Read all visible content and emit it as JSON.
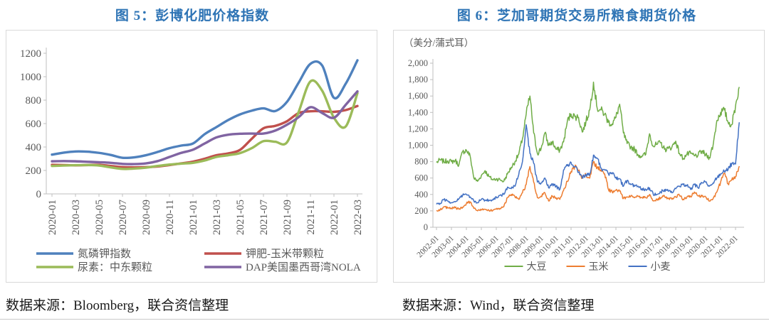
{
  "left": {
    "title": "图 5：彭博化肥价格指数",
    "source": "数据来源：Bloomberg，联合资信整理"
  },
  "right": {
    "title": "图 6：芝加哥期货交易所粮食期货价格",
    "source": "数据来源：Wind，联合资信整理"
  },
  "colors": {
    "title": "#2E74B5",
    "axis_text": "#595959",
    "axis_line": "#BFBFBF",
    "box_border": "#D9D9D9"
  },
  "chart_data": [
    {
      "type": "line",
      "title": "图 5：彭博化肥价格指数",
      "xlabel": "",
      "ylabel": "",
      "ylim": [
        0,
        1200
      ],
      "y_ticks": [
        0,
        200,
        400,
        600,
        800,
        1000,
        1200
      ],
      "y_tick_labels": [
        "0",
        "200",
        "400",
        "600",
        "800",
        "1000",
        "1200"
      ],
      "grid": false,
      "smooth": true,
      "legend_position": "bottom",
      "categories": [
        "2020-01",
        "2020-02",
        "2020-03",
        "2020-04",
        "2020-05",
        "2020-06",
        "2020-07",
        "2020-08",
        "2020-09",
        "2020-10",
        "2020-11",
        "2020-12",
        "2021-01",
        "2021-02",
        "2021-03",
        "2021-04",
        "2021-05",
        "2021-06",
        "2021-07",
        "2021-08",
        "2021-09",
        "2021-10",
        "2021-11",
        "2021-12",
        "2022-01",
        "2022-02",
        "2022-03"
      ],
      "x_tick_labels": [
        "2020-01",
        "2020-03",
        "2020-05",
        "2020-07",
        "2020-09",
        "2020-11",
        "2021-01",
        "2021-03",
        "2021-05",
        "2021-07",
        "2021-09",
        "2021-11",
        "2022-01",
        "2022-03"
      ],
      "series": [
        {
          "key": "npk-index",
          "name": "氮磷钾指数",
          "color": "#4F81BD",
          "values": [
            335,
            352,
            362,
            360,
            350,
            332,
            308,
            312,
            330,
            358,
            390,
            412,
            430,
            510,
            570,
            630,
            678,
            710,
            730,
            707,
            785,
            950,
            1110,
            1095,
            820,
            940,
            1140
          ]
        },
        {
          "key": "potash-cornbelt",
          "name": "钾肥-玉米带颗粒",
          "color": "#C0504D",
          "values": [
            248,
            246,
            244,
            246,
            248,
            238,
            228,
            226,
            228,
            234,
            246,
            260,
            275,
            300,
            330,
            345,
            375,
            470,
            560,
            580,
            620,
            690,
            705,
            705,
            700,
            715,
            750
          ]
        },
        {
          "key": "urea-middle-east",
          "name": "尿素：中东颗粒",
          "color": "#9BBB59",
          "values": [
            238,
            242,
            245,
            246,
            242,
            226,
            213,
            216,
            224,
            238,
            250,
            258,
            265,
            285,
            315,
            330,
            348,
            390,
            450,
            445,
            440,
            700,
            960,
            880,
            650,
            575,
            860
          ]
        },
        {
          "key": "dap-nola",
          "name": "DAP美国墨西哥湾NOLA",
          "color": "#8064A2",
          "values": [
            278,
            280,
            278,
            274,
            270,
            265,
            256,
            254,
            260,
            280,
            315,
            350,
            377,
            430,
            482,
            505,
            513,
            515,
            515,
            540,
            590,
            655,
            740,
            690,
            650,
            760,
            875
          ]
        }
      ]
    },
    {
      "type": "line",
      "title": "图 6：芝加哥期货交易所粮食期货价格",
      "unit_label": "（美分/蒲式耳）",
      "xlabel": "",
      "ylabel": "美分/蒲式耳",
      "ylim": [
        0,
        2000
      ],
      "y_ticks": [
        0,
        200,
        400,
        600,
        800,
        1000,
        1200,
        1400,
        1600,
        1800,
        2000
      ],
      "y_tick_labels": [
        "0",
        "200",
        "400",
        "600",
        "800",
        "1,000",
        "1,200",
        "1,400",
        "1,600",
        "1,800",
        "2,000"
      ],
      "grid": false,
      "smooth": false,
      "legend_position": "bottom",
      "x_start": "2002-01",
      "x_resolution": "quarterly",
      "x_tick_labels": [
        "2002-01",
        "2003-01",
        "2004-01",
        "2005-01",
        "2006-01",
        "2007-01",
        "2008-01",
        "2009-01",
        "2010-01",
        "2011-01",
        "2012-01",
        "2013-01",
        "2014-01",
        "2015-01",
        "2016-01",
        "2017-01",
        "2018-01",
        "2019-01",
        "2020-01",
        "2021-01",
        "2022-01"
      ],
      "series": [
        {
          "key": "soybean",
          "name": "大豆",
          "color": "#70AD47",
          "values": [
            790,
            820,
            800,
            810,
            800,
            815,
            760,
            920,
            940,
            870,
            600,
            560,
            630,
            690,
            620,
            580,
            590,
            580,
            560,
            650,
            730,
            800,
            890,
            1080,
            1380,
            1600,
            1150,
            900,
            960,
            1150,
            1000,
            1040,
            950,
            940,
            1040,
            1290,
            1380,
            1350,
            1340,
            1160,
            1290,
            1430,
            1770,
            1450,
            1430,
            1380,
            1280,
            1260,
            1340,
            1500,
            1150,
            1020,
            980,
            950,
            880,
            870,
            890,
            1140,
            990,
            1010,
            1030,
            950,
            960,
            980,
            1050,
            900,
            840,
            890,
            900,
            870,
            880,
            930,
            880,
            850,
            1000,
            1300,
            1400,
            1430,
            1280,
            1250,
            1480,
            1710
          ]
        },
        {
          "key": "corn",
          "name": "玉米",
          "color": "#ED7D31",
          "values": [
            205,
            215,
            250,
            235,
            230,
            240,
            220,
            245,
            290,
            310,
            230,
            200,
            210,
            220,
            210,
            200,
            220,
            230,
            250,
            360,
            400,
            370,
            340,
            420,
            520,
            740,
            550,
            360,
            380,
            420,
            320,
            380,
            360,
            340,
            450,
            560,
            680,
            740,
            690,
            600,
            640,
            600,
            800,
            730,
            700,
            650,
            460,
            430,
            450,
            440,
            350,
            370,
            380,
            360,
            380,
            360,
            360,
            400,
            320,
            340,
            360,
            380,
            350,
            340,
            370,
            390,
            340,
            370,
            370,
            430,
            380,
            380,
            370,
            320,
            350,
            430,
            550,
            660,
            530,
            580,
            620,
            745
          ]
        },
        {
          "key": "wheat",
          "name": "小麦",
          "color": "#4472C4",
          "values": [
            280,
            290,
            340,
            320,
            300,
            310,
            350,
            390,
            400,
            370,
            320,
            300,
            340,
            330,
            330,
            330,
            370,
            390,
            400,
            490,
            470,
            500,
            640,
            800,
            1250,
            900,
            780,
            550,
            540,
            600,
            480,
            530,
            500,
            460,
            700,
            750,
            790,
            740,
            670,
            600,
            640,
            650,
            880,
            840,
            720,
            700,
            650,
            650,
            610,
            590,
            500,
            570,
            520,
            500,
            500,
            470,
            460,
            480,
            400,
            400,
            430,
            460,
            440,
            420,
            470,
            500,
            520,
            510,
            460,
            520,
            480,
            540,
            550,
            500,
            540,
            600,
            650,
            680,
            700,
            780,
            770,
            1280
          ]
        }
      ]
    }
  ]
}
